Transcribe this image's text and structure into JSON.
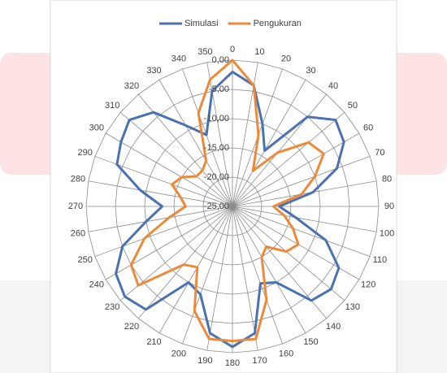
{
  "chart_data": {
    "type": "radar",
    "categories": [
      "0",
      "10",
      "20",
      "30",
      "40",
      "50",
      "60",
      "70",
      "80",
      "90",
      "100",
      "110",
      "120",
      "130",
      "140",
      "150",
      "160",
      "170",
      "180",
      "190",
      "200",
      "210",
      "220",
      "230",
      "240",
      "250",
      "260",
      "270",
      "280",
      "290",
      "300",
      "310",
      "320",
      "330",
      "340",
      "350"
    ],
    "series": [
      {
        "name": "Simulasi",
        "color": "#4a72b0",
        "values": [
          -2,
          -4,
          -10,
          -14,
          -5,
          -2,
          -3,
          -6,
          -11,
          -17,
          -14,
          -8,
          -4,
          -3,
          -4,
          -10,
          -11,
          -3,
          -1,
          -3,
          -9,
          -10,
          -2,
          -1,
          -2,
          -5,
          -10,
          -13,
          -9,
          -4,
          -3,
          -2,
          -4,
          -9,
          -12,
          -5
        ]
      },
      {
        "name": "Pengukuran",
        "color": "#ed8a3a",
        "values": [
          0,
          -4,
          -12,
          -18,
          -13,
          -8,
          -7,
          -10,
          -13,
          -18,
          -16,
          -14,
          -12,
          -13,
          -16,
          -15,
          -8,
          -2,
          -2,
          -2,
          -6,
          -13,
          -12,
          -4,
          -5,
          -9,
          -14,
          -17,
          -16,
          -14,
          -15,
          -17,
          -17,
          -16,
          -8,
          -3
        ]
      }
    ],
    "rlim": [
      -25,
      0
    ],
    "rticks": [
      {
        "value": -25,
        "label": "-25,00"
      },
      {
        "value": -20,
        "label": "-20,00"
      },
      {
        "value": -15,
        "label": "-15,00"
      },
      {
        "value": -10,
        "label": "-10,00"
      },
      {
        "value": -5,
        "label": "-5,00"
      },
      {
        "value": 0,
        "label": "0,00"
      }
    ],
    "legend": "top"
  }
}
